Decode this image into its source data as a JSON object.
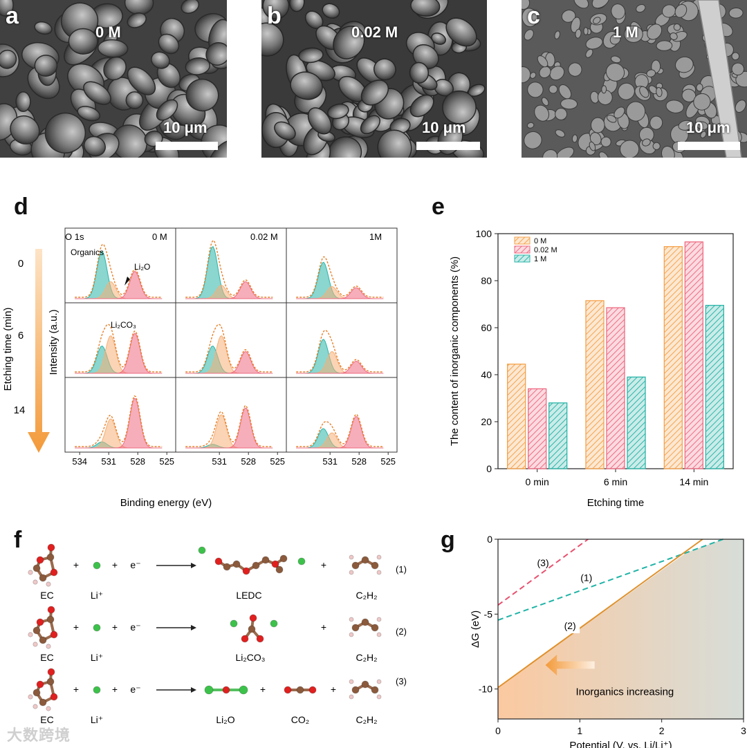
{
  "panels": {
    "a": {
      "letter": "a",
      "label": "0 M",
      "scale": "10 μm"
    },
    "b": {
      "letter": "b",
      "label": "0.02 M",
      "scale": "10 μm"
    },
    "c": {
      "letter": "c",
      "label": "1 M",
      "scale": "10 μm"
    }
  },
  "panel_d": {
    "letter": "d",
    "ylabel": "Intensity (a.u.)",
    "xlabel": "Binding energy (eV)",
    "side_label": "Etching time (min)",
    "times": [
      "0",
      "6",
      "14"
    ],
    "columns": [
      "0 M",
      "0.02 M",
      "1M"
    ],
    "o1s": "O 1s",
    "organics": "Organics",
    "li2o": "Li₂O",
    "li2co3": "Li₂CO₃",
    "ticks": [
      "534",
      "531",
      "528",
      "525"
    ]
  },
  "chart_data": [
    {
      "type": "bar",
      "id": "panel-e",
      "letter": "e",
      "categories": [
        "0 min",
        "6 min",
        "14 min"
      ],
      "series": [
        {
          "name": "0 M",
          "values": [
            44.5,
            71.5,
            94.5
          ],
          "color": "#f5a24b"
        },
        {
          "name": "0.02 M",
          "values": [
            34,
            68.5,
            96.5
          ],
          "color": "#ee6b82"
        },
        {
          "name": "1 M",
          "values": [
            28,
            39,
            69.5
          ],
          "color": "#2bb5a8"
        }
      ],
      "xlabel": "Etching time",
      "ylabel": "The content of inorganic components (%)",
      "ylim": [
        0,
        100
      ],
      "yticks": [
        "0",
        "20",
        "40",
        "60",
        "80",
        "100"
      ]
    },
    {
      "type": "line",
      "id": "panel-g",
      "letter": "g",
      "xlabel": "Potential (V, vs. Li/Li⁺)",
      "ylabel": "ΔG (eV)",
      "xlim": [
        0,
        3
      ],
      "ylim": [
        -12,
        0
      ],
      "xticks": [
        "0",
        "1",
        "2",
        "3"
      ],
      "yticks": [
        "0",
        "-5",
        "-10"
      ],
      "annotation": "Inorganics increasing",
      "series": [
        {
          "name": "(1)",
          "x": [
            0,
            2.3,
            2.75
          ],
          "y": [
            -5.4,
            -0.9,
            0
          ],
          "color": "#1fb3a6",
          "dashed": true
        },
        {
          "name": "(2)",
          "x": [
            0,
            2.5
          ],
          "y": [
            -9.9,
            0
          ],
          "color": "#e0902a",
          "dashed": false
        },
        {
          "name": "(3)",
          "x": [
            0,
            1.1
          ],
          "y": [
            -4.4,
            0
          ],
          "color": "#e8506e",
          "dashed": true
        }
      ]
    }
  ],
  "panel_f": {
    "letter": "f",
    "reactions": [
      {
        "reactant1": "EC",
        "reactant2": "Li⁺",
        "electron": "e⁻",
        "product1": "LEDC",
        "product2": "",
        "product3": "C₂H₂",
        "num": "(1)"
      },
      {
        "reactant1": "EC",
        "reactant2": "Li⁺",
        "electron": "e⁻",
        "product1": "Li₂CO₃",
        "product2": "",
        "product3": "C₂H₂",
        "num": "(2)"
      },
      {
        "reactant1": "EC",
        "reactant2": "Li⁺",
        "electron": "e⁻",
        "product1": "Li₂O",
        "product2": "CO₂",
        "product3": "C₂H₂",
        "num": "(3)"
      }
    ],
    "plus": "+"
  },
  "watermark": "大数跨境"
}
